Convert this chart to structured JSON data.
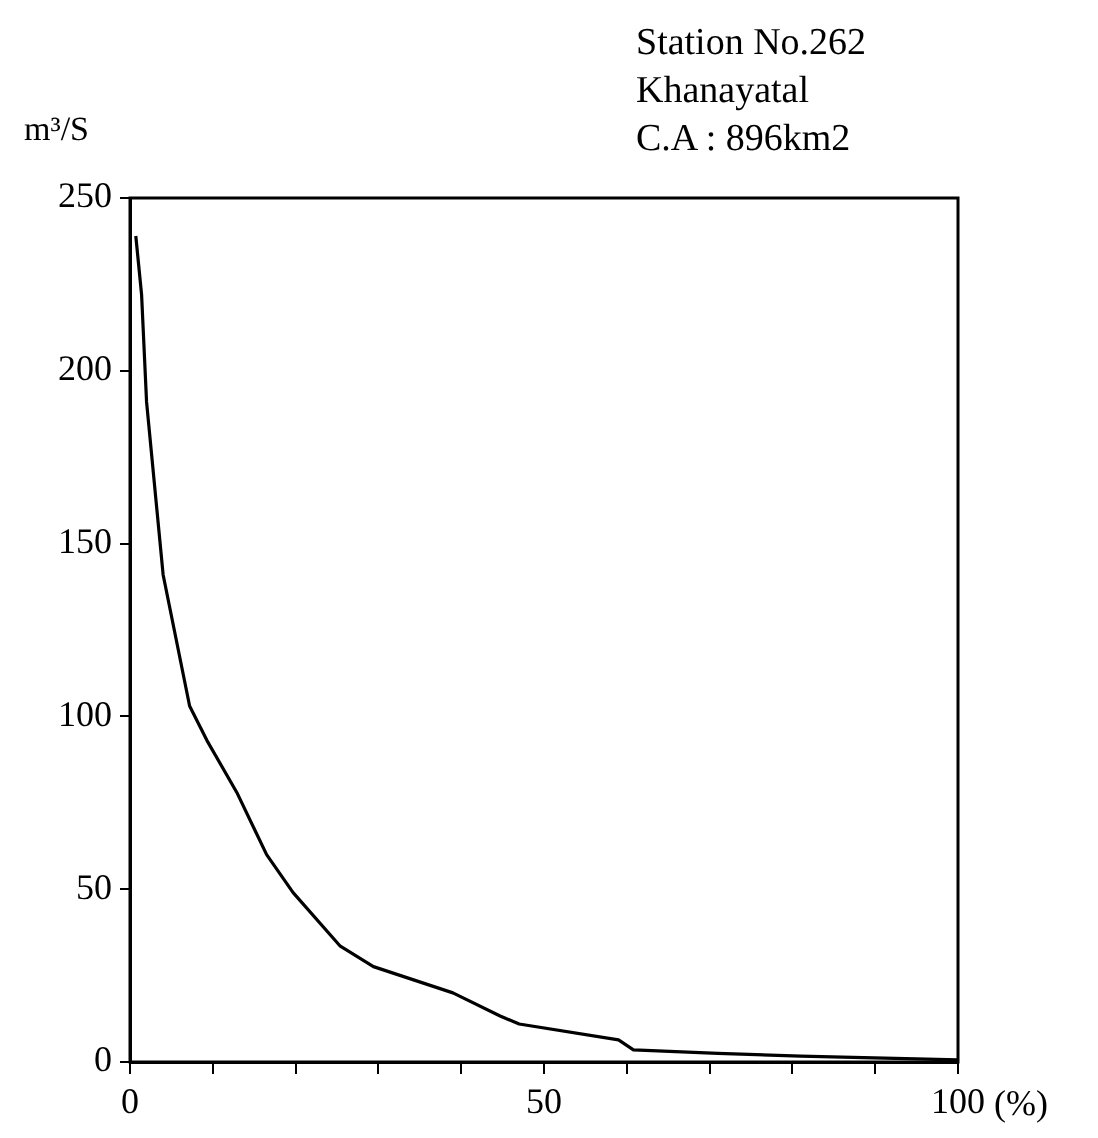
{
  "chart_data": {
    "type": "line",
    "ylabel": "m³/S",
    "xlabel": "(%)",
    "annotations": [
      "Station No.262",
      "Khanayatal",
      "C.A : 896km2"
    ],
    "x": [
      0.7,
      1.4,
      2,
      4,
      7.2,
      9.3,
      12.9,
      16.5,
      19.7,
      25.4,
      29.4,
      39,
      44.7,
      47,
      59,
      60.8,
      71,
      81,
      100
    ],
    "series": [
      {
        "color": "#000000",
        "values": [
          239,
          222,
          191,
          141,
          103,
          93,
          78,
          60,
          49,
          33.5,
          27.6,
          20,
          13.3,
          11,
          6.4,
          3.5,
          2.5,
          1.7,
          0.6
        ]
      }
    ],
    "xlim": [
      0,
      100
    ],
    "xticks": [
      0,
      {
        "value": 10,
        "label": null
      },
      {
        "value": 20,
        "label": null
      },
      {
        "value": 30,
        "label": null
      },
      {
        "value": 40,
        "label": null
      },
      50,
      {
        "value": 60,
        "label": null
      },
      {
        "value": 70,
        "label": null
      },
      {
        "value": 80,
        "label": null
      },
      {
        "value": 90,
        "label": null
      },
      100
    ],
    "ylim": [
      0,
      250
    ],
    "yticks": [
      0,
      50,
      100,
      150,
      200,
      250
    ],
    "grid": false,
    "legend": false,
    "marker": "none",
    "line_style": "solid"
  }
}
